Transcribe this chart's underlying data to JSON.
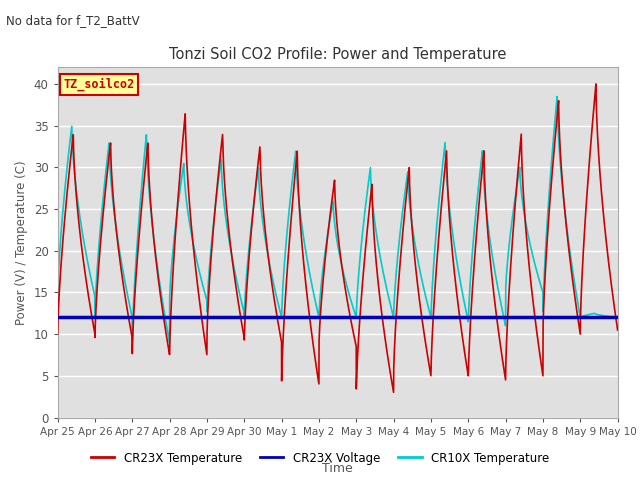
{
  "title": "Tonzi Soil CO2 Profile: Power and Temperature",
  "subtitle": "No data for f_T2_BattV",
  "xlabel": "Time",
  "ylabel": "Power (V) / Temperature (C)",
  "ylim": [
    0,
    42
  ],
  "yticks": [
    0,
    5,
    10,
    15,
    20,
    25,
    30,
    35,
    40
  ],
  "xtick_labels": [
    "Apr 25",
    "Apr 26",
    "Apr 27",
    "Apr 28",
    "Apr 29",
    "Apr 30",
    "May 1",
    "May 2",
    "May 3",
    "May 4",
    "May 5",
    "May 6",
    "May 7",
    "May 8",
    "May 9",
    "May 10"
  ],
  "legend_labels": [
    "CR23X Temperature",
    "CR23X Voltage",
    "CR10X Temperature"
  ],
  "legend_colors": [
    "#cc0000",
    "#0000bb",
    "#00cccc"
  ],
  "fig_facecolor": "#ffffff",
  "plot_facecolor": "#e0e0e0",
  "annotation_box_text": "TZ_soilco2",
  "annotation_box_facecolor": "#ffff99",
  "annotation_box_edgecolor": "#cc0000",
  "voltage_value": 12.0,
  "n_days": 15,
  "cr23x_peaks": [
    34.0,
    33.0,
    33.0,
    36.5,
    34.0,
    32.5,
    32.0,
    28.5,
    28.0,
    30.0,
    32.0,
    32.0,
    34.0,
    38.0,
    40.0
  ],
  "cr23x_troughs": [
    10.0,
    9.5,
    7.5,
    7.5,
    9.5,
    9.0,
    4.0,
    8.5,
    3.0,
    5.0,
    5.0,
    4.5,
    5.0,
    10.0,
    10.5
  ],
  "cr10x_peaks": [
    35.0,
    33.0,
    34.0,
    30.5,
    31.0,
    30.0,
    32.0,
    26.0,
    30.0,
    29.5,
    33.0,
    32.0,
    30.0,
    38.5,
    12.5
  ],
  "cr10x_troughs": [
    14.5,
    12.0,
    9.0,
    14.0,
    12.5,
    12.0,
    12.0,
    12.0,
    12.0,
    12.0,
    11.5,
    11.0,
    15.0,
    12.0,
    12.0
  ],
  "cr23x_peak_phase": 0.42,
  "cr10x_peak_phase": 0.38
}
